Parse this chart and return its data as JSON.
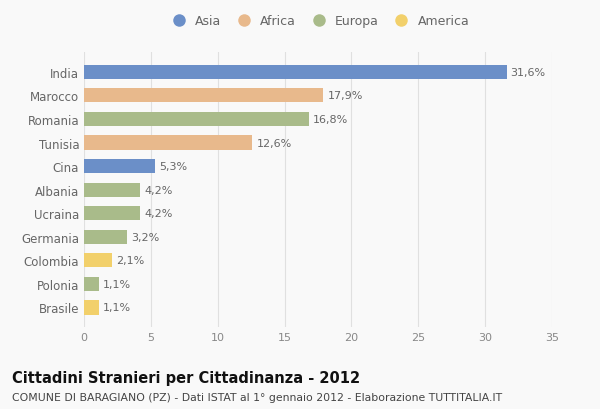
{
  "countries": [
    "India",
    "Marocco",
    "Romania",
    "Tunisia",
    "Cina",
    "Albania",
    "Ucraina",
    "Germania",
    "Colombia",
    "Polonia",
    "Brasile"
  ],
  "values": [
    31.6,
    17.9,
    16.8,
    12.6,
    5.3,
    4.2,
    4.2,
    3.2,
    2.1,
    1.1,
    1.1
  ],
  "labels": [
    "31,6%",
    "17,9%",
    "16,8%",
    "12,6%",
    "5,3%",
    "4,2%",
    "4,2%",
    "3,2%",
    "2,1%",
    "1,1%",
    "1,1%"
  ],
  "continents": [
    "Asia",
    "Africa",
    "Europa",
    "Africa",
    "Asia",
    "Europa",
    "Europa",
    "Europa",
    "America",
    "Europa",
    "America"
  ],
  "colors": {
    "Asia": "#6b8fc8",
    "Africa": "#e8b98c",
    "Europa": "#a9bb8a",
    "America": "#f2d06b"
  },
  "legend_order": [
    "Asia",
    "Africa",
    "Europa",
    "America"
  ],
  "title": "Cittadini Stranieri per Cittadinanza - 2012",
  "subtitle": "COMUNE DI BARAGIANO (PZ) - Dati ISTAT al 1° gennaio 2012 - Elaborazione TUTTITALIA.IT",
  "xlim": [
    0,
    35
  ],
  "xticks": [
    0,
    5,
    10,
    15,
    20,
    25,
    30,
    35
  ],
  "background_color": "#f9f9f9",
  "grid_color": "#e0e0e0",
  "title_fontsize": 10.5,
  "subtitle_fontsize": 7.8,
  "bar_height": 0.6
}
